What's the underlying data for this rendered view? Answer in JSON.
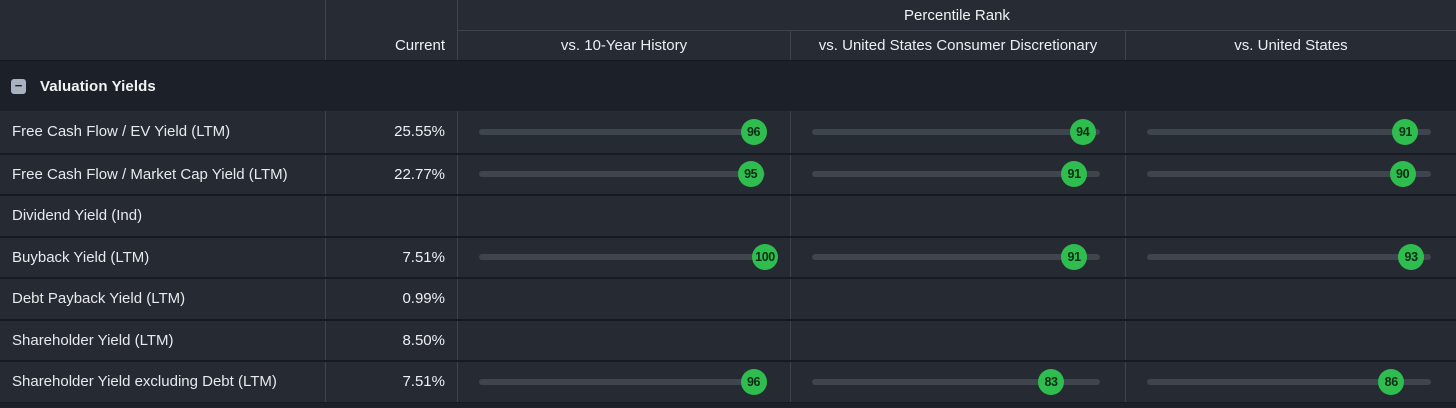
{
  "header": {
    "group_label": "Percentile Rank",
    "current_label": "Current",
    "columns": [
      "vs. 10-Year History",
      "vs. United States Consumer Discretionary",
      "vs. United States"
    ]
  },
  "section": {
    "title": "Valuation Yields",
    "collapse_icon": "minus",
    "collapsed": false
  },
  "rows": [
    {
      "label": "Free Cash Flow / EV Yield (LTM)",
      "current": "25.55%",
      "percentiles": [
        96,
        94,
        91
      ]
    },
    {
      "label": "Free Cash Flow / Market Cap Yield (LTM)",
      "current": "22.77%",
      "percentiles": [
        95,
        91,
        90
      ]
    },
    {
      "label": "Dividend Yield (Ind)",
      "current": "",
      "percentiles": [
        null,
        null,
        null
      ]
    },
    {
      "label": "Buyback Yield (LTM)",
      "current": "7.51%",
      "percentiles": [
        100,
        91,
        93
      ]
    },
    {
      "label": "Debt Payback Yield (LTM)",
      "current": "0.99%",
      "percentiles": [
        null,
        null,
        null
      ]
    },
    {
      "label": "Shareholder Yield (LTM)",
      "current": "8.50%",
      "percentiles": [
        null,
        null,
        null
      ]
    },
    {
      "label": "Shareholder Yield excluding Debt (LTM)",
      "current": "7.51%",
      "percentiles": [
        96,
        83,
        86
      ]
    }
  ],
  "colors": {
    "badge_green": "#2fbd4f",
    "badge_text": "#0c2e15",
    "row_background": "#252a33",
    "header_background": "#262b34",
    "section_background": "#1c2129",
    "track_gray": "#3f454e"
  }
}
